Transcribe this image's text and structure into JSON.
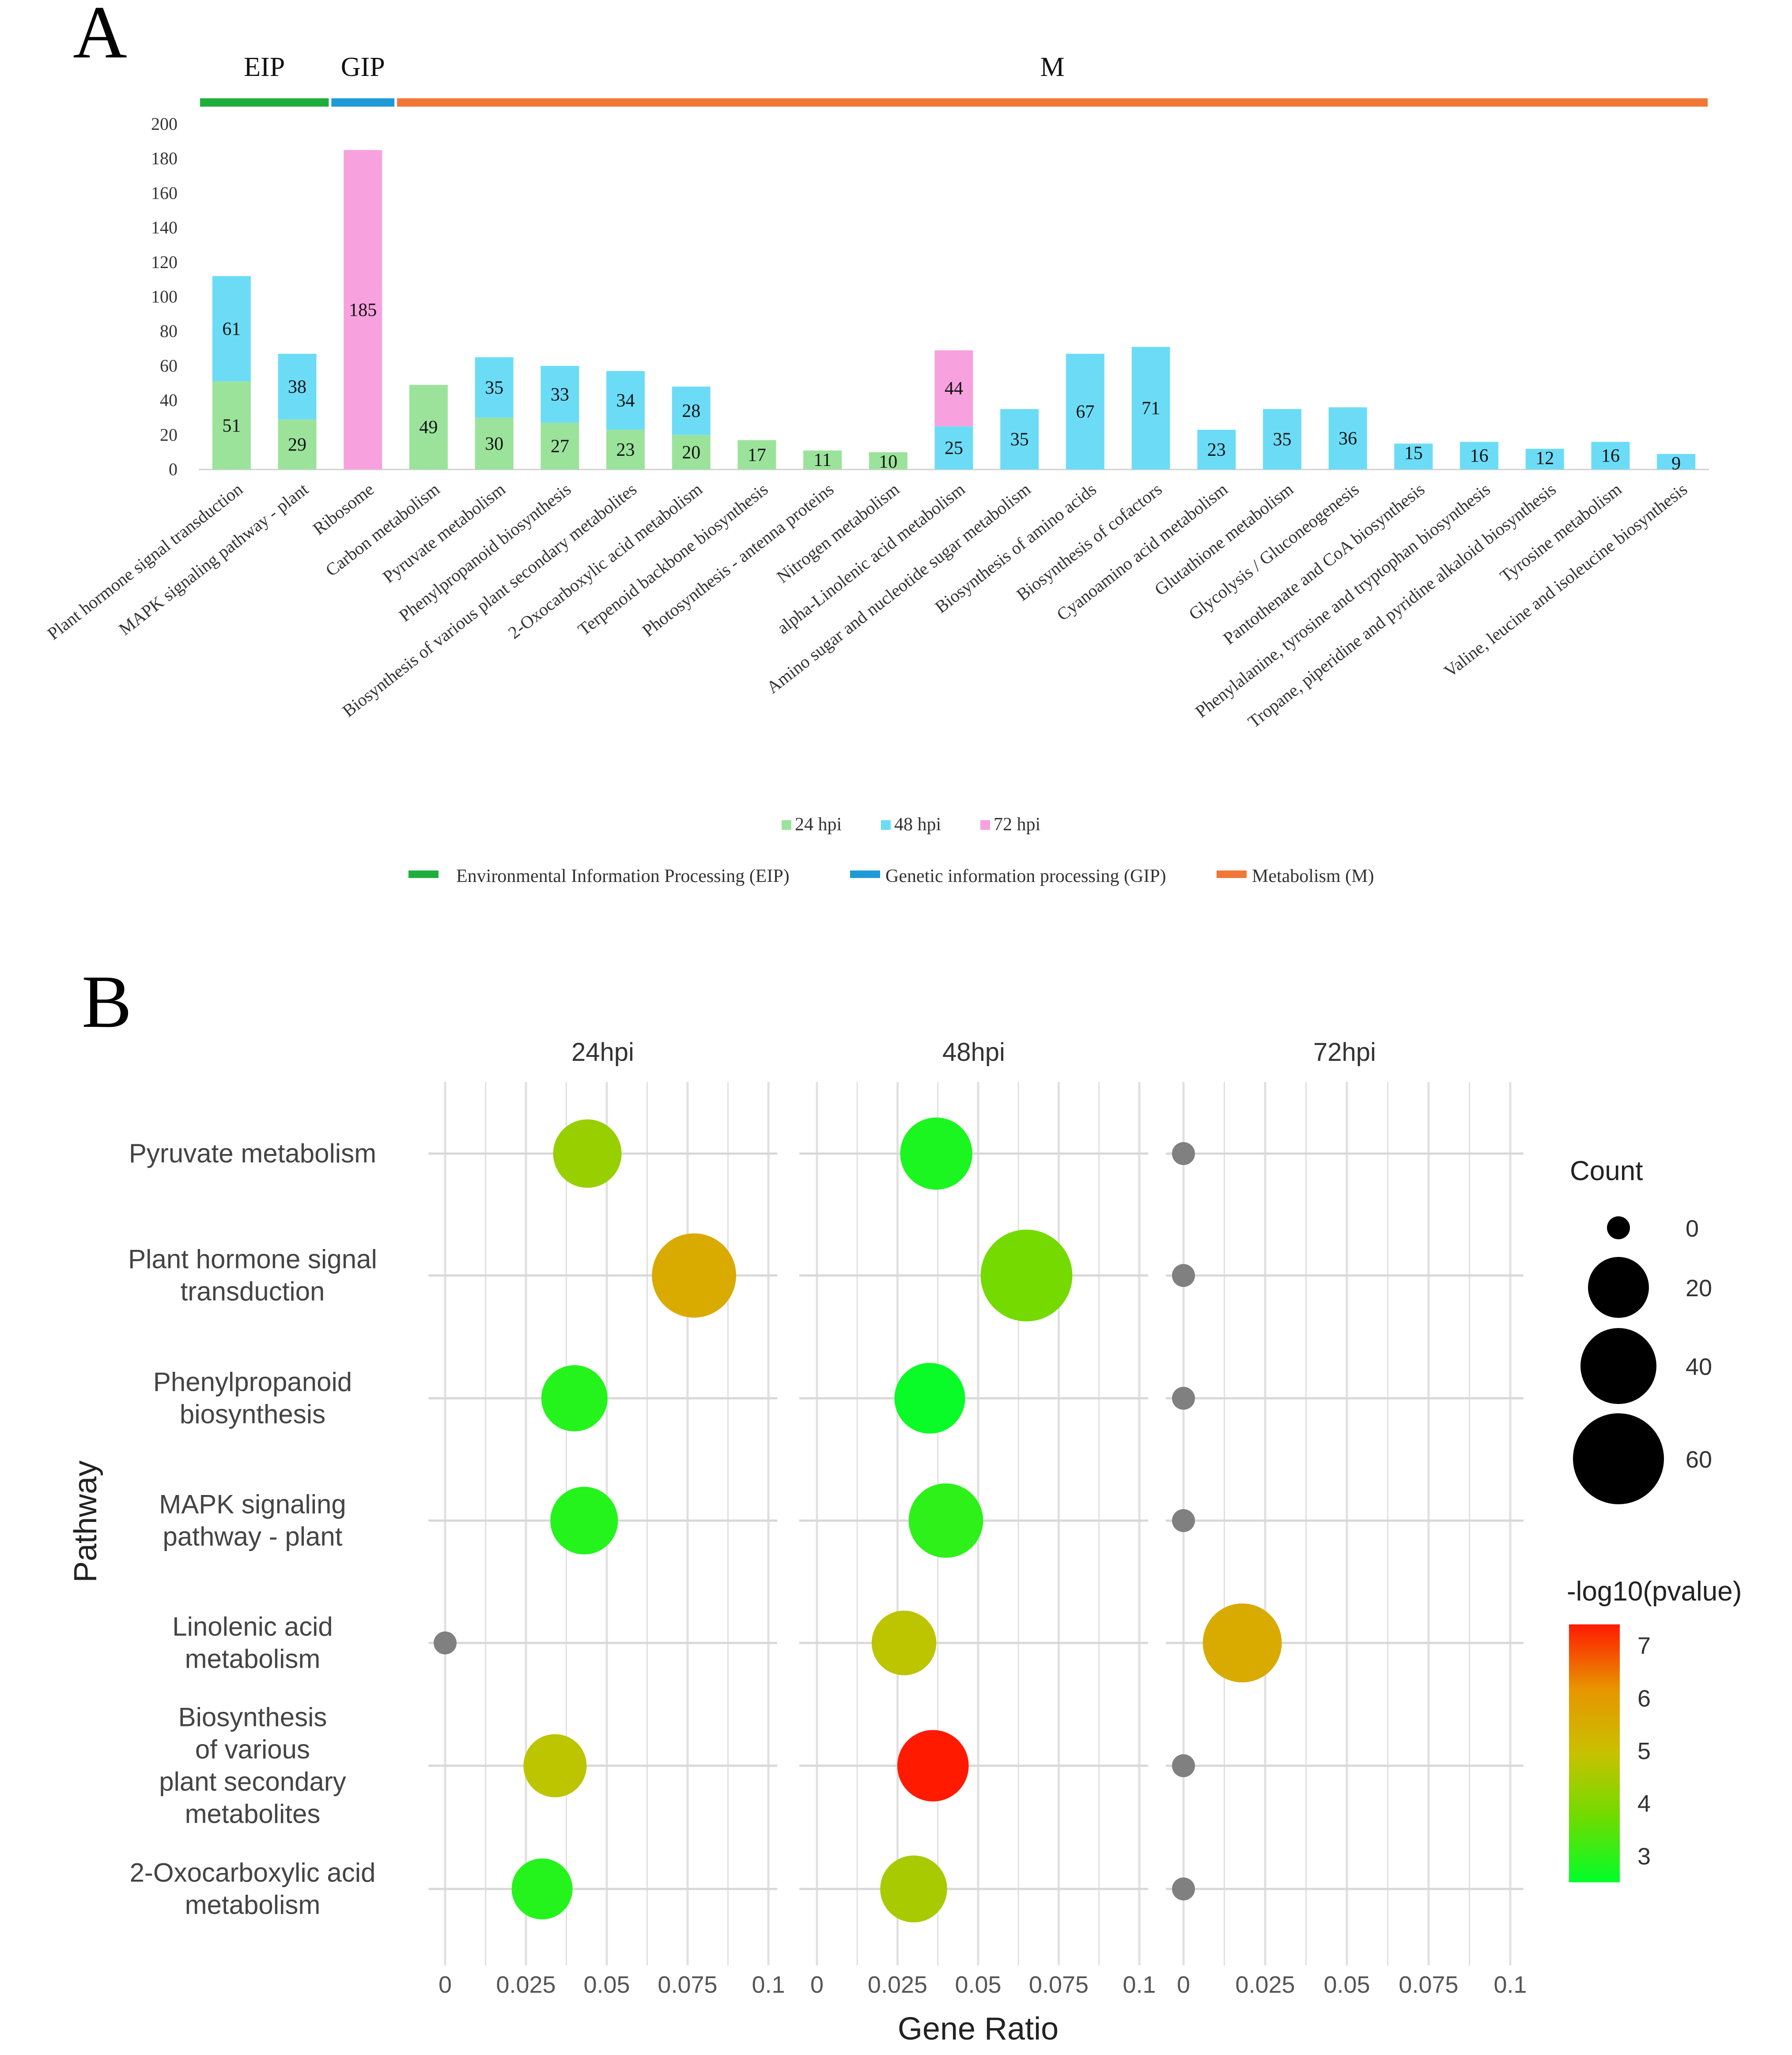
{
  "panel_a": {
    "letter": "A",
    "groups": [
      {
        "label": "EIP",
        "color": "#1fae3c",
        "from": 0,
        "to": 1
      },
      {
        "label": "GIP",
        "color": "#1e9ad6",
        "from": 2,
        "to": 2
      },
      {
        "label": "M",
        "color": "#f07735",
        "from": 3,
        "to": 22
      }
    ],
    "series_legend": [
      {
        "label": "24 hpi",
        "color": "#9be39b"
      },
      {
        "label": "48 hpi",
        "color": "#6cdcf6"
      },
      {
        "label": "72 hpi",
        "color": "#f8a1df"
      }
    ],
    "category_legend": [
      {
        "label": "Environmental Information Processing (EIP)",
        "color": "#1fae3c"
      },
      {
        "label": "Genetic information processing (GIP)",
        "color": "#1e9ad6"
      },
      {
        "label": "Metabolism (M)",
        "color": "#f07735"
      }
    ]
  },
  "panel_b": {
    "letter": "B",
    "facets": [
      "24hpi",
      "48hpi",
      "72hpi"
    ],
    "y_title": "Pathway",
    "x_title": "Gene Ratio",
    "x_ticks": [
      "0",
      "0.025",
      "0.05",
      "0.075",
      "0.1"
    ],
    "pathway_labels": [
      [
        "Pyruvate metabolism"
      ],
      [
        "Plant hormone signal",
        "transduction"
      ],
      [
        "Phenylpropanoid",
        "biosynthesis"
      ],
      [
        "MAPK signaling",
        "pathway - plant"
      ],
      [
        "Linolenic acid",
        "metabolism"
      ],
      [
        "Biosynthesis",
        "of various",
        "plant secondary",
        "metabolites"
      ],
      [
        "2-Oxocarboxylic acid",
        "metabolism"
      ]
    ],
    "size_legend": {
      "title": "Count",
      "values": [
        0,
        20,
        40,
        60
      ]
    },
    "color_legend": {
      "title": "-log10(pvalue)",
      "ticks": [
        7,
        6,
        5,
        4,
        3
      ],
      "min": 2.5,
      "max": 7.4,
      "colors": [
        "#00ff2a",
        "#6edc00",
        "#c8c100",
        "#e89500",
        "#ff1a00"
      ]
    }
  },
  "chart_data": [
    {
      "type": "bar",
      "title": "",
      "xlabel": "",
      "ylabel": "",
      "ylim": [
        0,
        200
      ],
      "yticks": [
        0,
        20,
        40,
        60,
        80,
        100,
        120,
        140,
        160,
        180,
        200
      ],
      "stacked": true,
      "categories": [
        "Plant hormone signal transduction",
        "MAPK signaling pathway - plant",
        "Ribosome",
        "Carbon metabolism",
        "Pyruvate metabolism",
        "Phenylpropanoid biosynthesis",
        "Biosynthesis of various plant secondary metabolites",
        "2-Oxocarboxylic acid metabolism",
        "Terpenoid backbone biosynthesis",
        "Photosynthesis - antenna proteins",
        "Nitrogen metabolism",
        "alpha-Linolenic acid metabolism",
        "Amino sugar and nucleotide sugar metabolism",
        "Biosynthesis of amino acids",
        "Biosynthesis of cofactors",
        "Cyanoamino acid metabolism",
        "Glutathione metabolism",
        "Glycolysis / Gluconeogenesis",
        "Pantothenate and CoA biosynthesis",
        "Phenylalanine, tyrosine and tryptophan biosynthesis",
        "Tropane, piperidine and pyridine alkaloid biosynthesis",
        "Tyrosine metabolism",
        "Valine, leucine and isoleucine biosynthesis"
      ],
      "series": [
        {
          "name": "24 hpi",
          "color": "#9be39b",
          "values": [
            51,
            29,
            0,
            49,
            30,
            27,
            23,
            20,
            17,
            11,
            10,
            0,
            0,
            0,
            0,
            0,
            0,
            0,
            0,
            0,
            0,
            0,
            0
          ]
        },
        {
          "name": "48 hpi",
          "color": "#6cdcf6",
          "values": [
            61,
            38,
            0,
            0,
            35,
            33,
            34,
            28,
            0,
            0,
            0,
            25,
            35,
            67,
            71,
            23,
            35,
            36,
            15,
            16,
            12,
            16,
            9
          ]
        },
        {
          "name": "72 hpi",
          "color": "#f8a1df",
          "values": [
            0,
            0,
            185,
            0,
            0,
            0,
            0,
            0,
            0,
            0,
            0,
            44,
            0,
            0,
            0,
            0,
            0,
            0,
            0,
            0,
            0,
            0,
            0
          ]
        }
      ]
    },
    {
      "type": "scatter",
      "title": "",
      "xlabel": "Gene Ratio",
      "ylabel": "Pathway",
      "xlim": [
        0,
        0.1
      ],
      "facets": [
        "24hpi",
        "48hpi",
        "72hpi"
      ],
      "categories": [
        "Pyruvate metabolism",
        "Plant hormone signal transduction",
        "Phenylpropanoid biosynthesis",
        "MAPK signaling pathway - plant",
        "Linolenic acid metabolism",
        "Biosynthesis of various plant secondary metabolites",
        "2-Oxocarboxylic acid metabolism"
      ],
      "series": [
        {
          "name": "24hpi",
          "gene_ratio": [
            0.044,
            0.077,
            0.04,
            0.043,
            0.0,
            0.034,
            0.03
          ],
          "count": [
            30,
            51,
            27,
            29,
            0,
            23,
            20
          ],
          "neg_log10_pvalue": [
            4.3,
            5.6,
            2.9,
            2.9,
            null,
            4.8,
            2.9
          ]
        },
        {
          "name": "48hpi",
          "gene_ratio": [
            0.037,
            0.065,
            0.035,
            0.04,
            0.027,
            0.036,
            0.03
          ],
          "count": [
            35,
            61,
            33,
            38,
            25,
            34,
            28
          ],
          "neg_log10_pvalue": [
            2.8,
            3.8,
            2.6,
            3.0,
            4.8,
            7.4,
            4.5
          ]
        },
        {
          "name": "72hpi",
          "gene_ratio": [
            0.0,
            0.0,
            0.0,
            0.0,
            0.018,
            0.0,
            0.0
          ],
          "count": [
            0,
            0,
            0,
            0,
            44,
            0,
            0
          ],
          "neg_log10_pvalue": [
            null,
            null,
            null,
            null,
            5.6,
            null,
            null
          ]
        }
      ]
    }
  ]
}
